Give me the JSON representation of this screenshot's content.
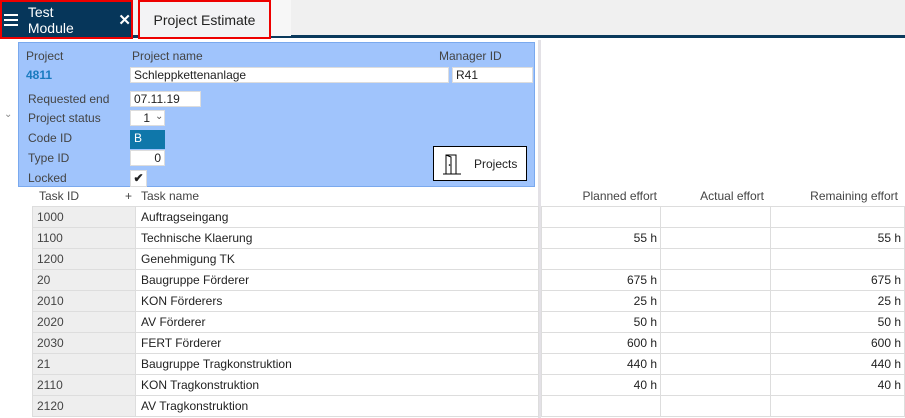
{
  "tabs": {
    "module": "Test Module",
    "active": "Project Estimate"
  },
  "form": {
    "project_label": "Project",
    "project_value": "4811",
    "name_label": "Project name",
    "name_value": "Schleppkettenanlage",
    "manager_label": "Manager ID",
    "manager_value": "R41",
    "req_end_label": "Requested end",
    "req_end_value": "07.11.19",
    "status_label": "Project status",
    "status_value": "1",
    "code_label": "Code ID",
    "code_value": "B",
    "type_label": "Type ID",
    "type_value": "0",
    "locked_label": "Locked",
    "locked": true,
    "projects_button": "Projects"
  },
  "table": {
    "headers": {
      "task_id": "Task ID",
      "add": "+",
      "task_name": "Task name",
      "planned": "Planned effort",
      "actual": "Actual effort",
      "remaining": "Remaining effort"
    },
    "rows": [
      {
        "id": "1000",
        "name": "Auftragseingang",
        "planned": "",
        "actual": "",
        "remaining": ""
      },
      {
        "id": "1100",
        "name": "Technische Klaerung",
        "planned": "55 h",
        "actual": "",
        "remaining": "55 h"
      },
      {
        "id": "1200",
        "name": "Genehmigung TK",
        "planned": "",
        "actual": "",
        "remaining": ""
      },
      {
        "id": "20",
        "name": "Baugruppe Förderer",
        "planned": "675 h",
        "actual": "",
        "remaining": "675 h"
      },
      {
        "id": "2010",
        "name": "KON Förderers",
        "planned": "25 h",
        "actual": "",
        "remaining": "25 h"
      },
      {
        "id": "2020",
        "name": "AV Förderer",
        "planned": "50 h",
        "actual": "",
        "remaining": "50 h"
      },
      {
        "id": "2030",
        "name": "FERT Förderer",
        "planned": "600 h",
        "actual": "",
        "remaining": "600 h"
      },
      {
        "id": "21",
        "name": "Baugruppe Tragkonstruktion",
        "planned": "440 h",
        "actual": "",
        "remaining": "440 h"
      },
      {
        "id": "2110",
        "name": "KON Tragkonstruktion",
        "planned": "40 h",
        "actual": "",
        "remaining": "40 h"
      },
      {
        "id": "2120",
        "name": "AV Tragkonstruktion",
        "planned": "",
        "actual": "",
        "remaining": ""
      }
    ]
  }
}
